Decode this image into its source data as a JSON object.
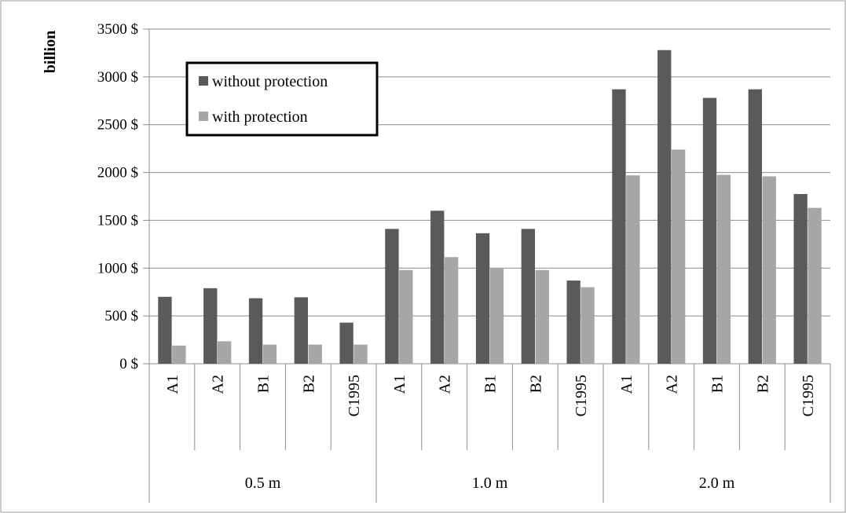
{
  "chart_data": {
    "type": "bar",
    "ylabel": "billion",
    "ylim": [
      0,
      3500
    ],
    "y_tick_step": 500,
    "y_tick_suffix": " $",
    "grid": true,
    "legend_position": "top-left",
    "groups": [
      {
        "label": "0.5 m",
        "categories": [
          "A1",
          "A2",
          "B1",
          "B2",
          "C1995"
        ]
      },
      {
        "label": "1.0 m",
        "categories": [
          "A1",
          "A2",
          "B1",
          "B2",
          "C1995"
        ]
      },
      {
        "label": "2.0 m",
        "categories": [
          "A1",
          "A2",
          "B1",
          "B2",
          "C1995"
        ]
      }
    ],
    "series": [
      {
        "name": "without protection",
        "color": "#5a5a5a",
        "values": [
          700,
          790,
          685,
          695,
          430,
          1410,
          1600,
          1365,
          1410,
          870,
          2870,
          3280,
          2780,
          2870,
          1775
        ]
      },
      {
        "name": "with protection",
        "color": "#a6a6a6",
        "values": [
          190,
          235,
          200,
          200,
          200,
          980,
          1115,
          995,
          980,
          800,
          1970,
          2240,
          1975,
          1960,
          1630
        ]
      }
    ]
  }
}
